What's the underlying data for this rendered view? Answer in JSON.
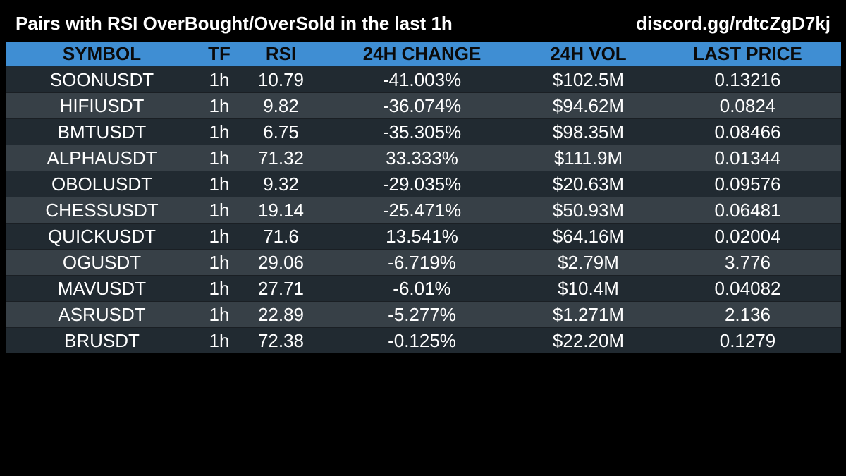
{
  "header": {
    "title": "Pairs with RSI OverBought/OverSold in the last 1h",
    "invite": "discord.gg/rdtcZgD7kj"
  },
  "table": {
    "columns": [
      "SYMBOL",
      "TF",
      "RSI",
      "24H CHANGE",
      "24H VOL",
      "LAST PRICE"
    ],
    "rows": [
      [
        "SOONUSDT",
        "1h",
        "10.79",
        "-41.003%",
        "$102.5M",
        "0.13216"
      ],
      [
        "HIFIUSDT",
        "1h",
        "9.82",
        "-36.074%",
        "$94.62M",
        "0.0824"
      ],
      [
        "BMTUSDT",
        "1h",
        "6.75",
        "-35.305%",
        "$98.35M",
        "0.08466"
      ],
      [
        "ALPHAUSDT",
        "1h",
        "71.32",
        "33.333%",
        "$111.9M",
        "0.01344"
      ],
      [
        "OBOLUSDT",
        "1h",
        "9.32",
        "-29.035%",
        "$20.63M",
        "0.09576"
      ],
      [
        "CHESSUSDT",
        "1h",
        "19.14",
        "-25.471%",
        "$50.93M",
        "0.06481"
      ],
      [
        "QUICKUSDT",
        "1h",
        "71.6",
        "13.541%",
        "$64.16M",
        "0.02004"
      ],
      [
        "OGUSDT",
        "1h",
        "29.06",
        "-6.719%",
        "$2.79M",
        "3.776"
      ],
      [
        "MAVUSDT",
        "1h",
        "27.71",
        "-6.01%",
        "$10.4M",
        "0.04082"
      ],
      [
        "ASRUSDT",
        "1h",
        "22.89",
        "-5.277%",
        "$1.271M",
        "2.136"
      ],
      [
        "BRUSDT",
        "1h",
        "72.38",
        "-0.125%",
        "$22.20M",
        "0.1279"
      ]
    ]
  },
  "colors": {
    "header_bar": "#3f8ed3",
    "row_dark": "#212a31",
    "row_light": "#374047",
    "background": "#000000"
  }
}
